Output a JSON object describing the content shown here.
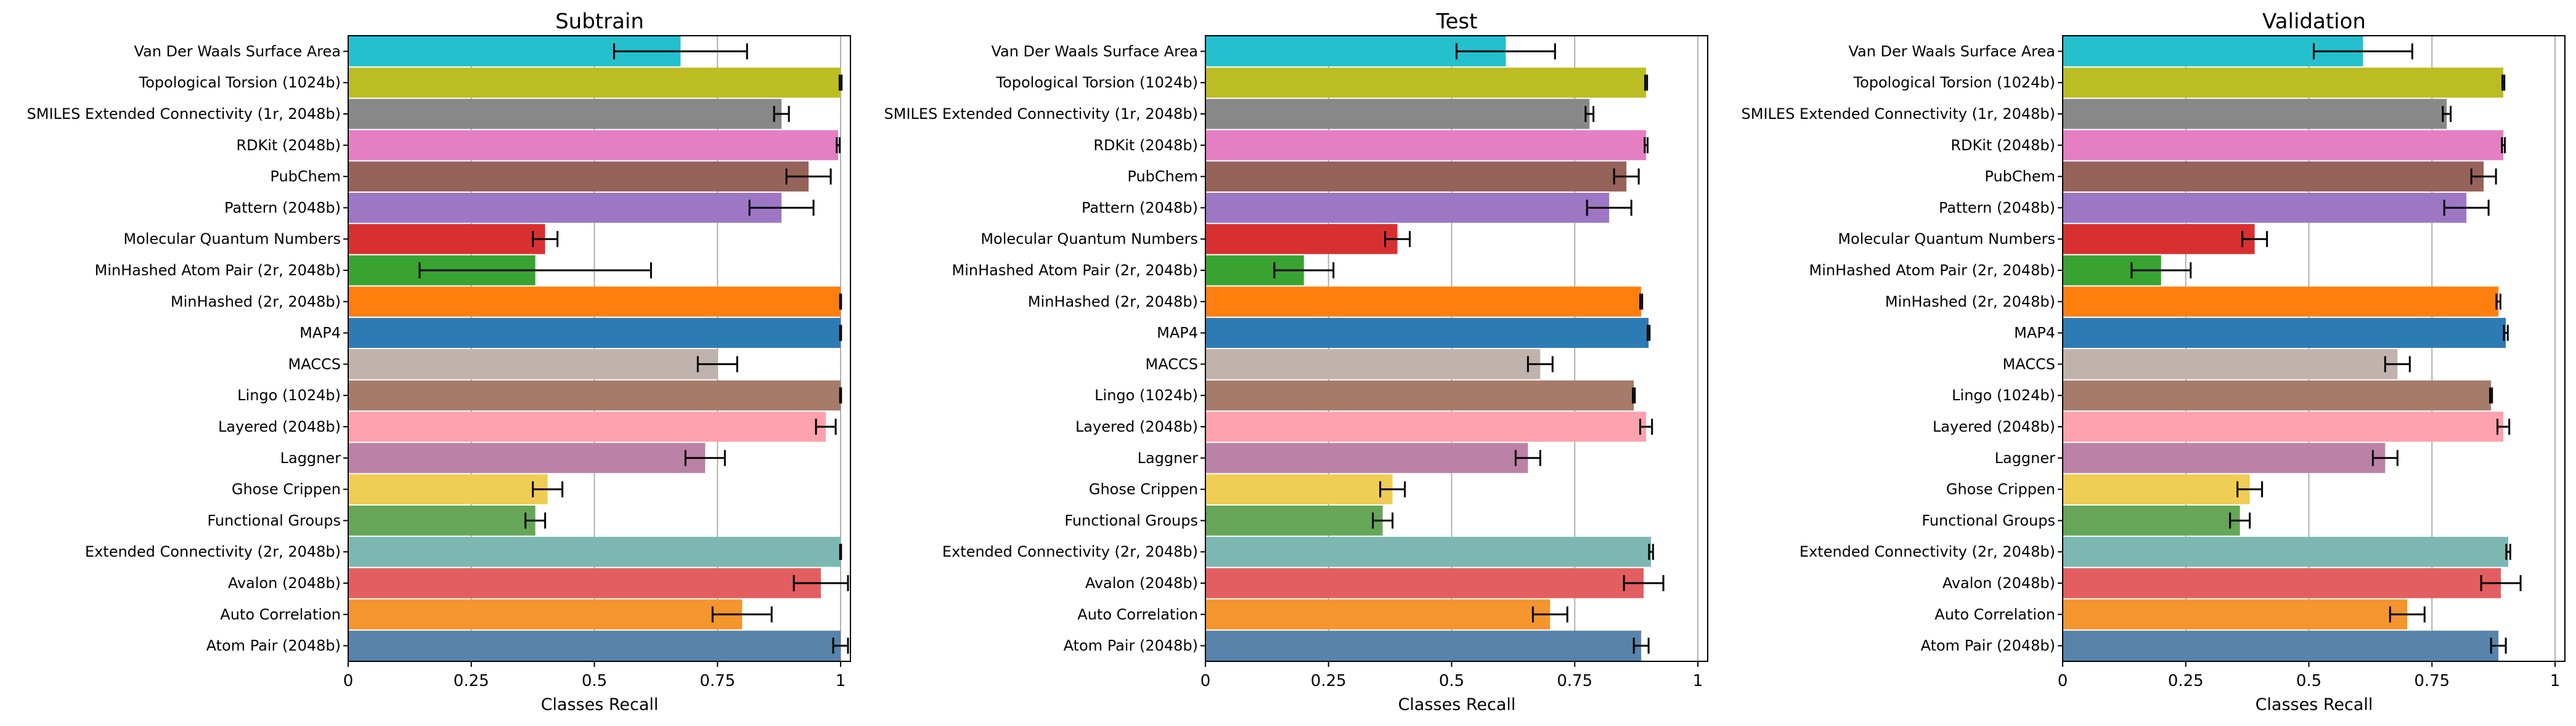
{
  "chart_data": [
    {
      "type": "bar",
      "orientation": "horizontal",
      "title": "Subtrain",
      "xlabel": "Classes Recall",
      "ylabel": "",
      "xlim": [
        0,
        1.02
      ],
      "xticks": [
        0,
        0.25,
        0.5,
        0.75,
        1
      ],
      "xtick_labels": [
        "0",
        "0.25",
        "0.5",
        "0.75",
        "1"
      ],
      "grid": "vertical",
      "categories": [
        "Van Der Waals Surface Area",
        "Topological Torsion (1024b)",
        "SMILES Extended Connectivity (1r, 2048b)",
        "RDKit (2048b)",
        "PubChem",
        "Pattern (2048b)",
        "Molecular Quantum Numbers",
        "MinHashed Atom Pair (2r, 2048b)",
        "MinHashed (2r, 2048b)",
        "MAP4",
        "MACCS",
        "Lingo (1024b)",
        "Layered (2048b)",
        "Laggner",
        "Ghose Crippen",
        "Functional Groups",
        "Extended Connectivity (2r, 2048b)",
        "Avalon (2048b)",
        "Auto Correlation",
        "Atom Pair (2048b)"
      ],
      "values": [
        0.675,
        1.0,
        0.88,
        0.995,
        0.935,
        0.88,
        0.4,
        0.38,
        1.0,
        1.0,
        0.75,
        1.0,
        0.97,
        0.725,
        0.405,
        0.38,
        1.0,
        0.96,
        0.8,
        1.0
      ],
      "errors": [
        0.135,
        0.002,
        0.015,
        0.003,
        0.045,
        0.065,
        0.025,
        0.235,
        0.001,
        0.001,
        0.04,
        0.001,
        0.02,
        0.04,
        0.03,
        0.02,
        0.001,
        0.055,
        0.06,
        0.015
      ],
      "colors": [
        "#24c0ce",
        "#bcbd22",
        "#888888",
        "#e57fc3",
        "#96635a",
        "#9d77c4",
        "#d83030",
        "#39a331",
        "#fe7f0e",
        "#2c7bb5",
        "#c0b3ae",
        "#a67b6a",
        "#fea2ad",
        "#bc81a6",
        "#efcd54",
        "#66a659",
        "#7cb8b1",
        "#e35e60",
        "#f4952e",
        "#5883ab"
      ]
    },
    {
      "type": "bar",
      "orientation": "horizontal",
      "title": "Test",
      "xlabel": "Classes Recall",
      "ylabel": "",
      "xlim": [
        0,
        1.02
      ],
      "xticks": [
        0,
        0.25,
        0.5,
        0.75,
        1
      ],
      "xtick_labels": [
        "0",
        "0.25",
        "0.5",
        "0.75",
        "1"
      ],
      "grid": "vertical",
      "categories": [
        "Van Der Waals Surface Area",
        "Topological Torsion (1024b)",
        "SMILES Extended Connectivity (1r, 2048b)",
        "RDKit (2048b)",
        "PubChem",
        "Pattern (2048b)",
        "Molecular Quantum Numbers",
        "MinHashed Atom Pair (2r, 2048b)",
        "MinHashed (2r, 2048b)",
        "MAP4",
        "MACCS",
        "Lingo (1024b)",
        "Layered (2048b)",
        "Laggner",
        "Ghose Crippen",
        "Functional Groups",
        "Extended Connectivity (2r, 2048b)",
        "Avalon (2048b)",
        "Auto Correlation",
        "Atom Pair (2048b)"
      ],
      "values": [
        0.61,
        0.895,
        0.78,
        0.895,
        0.855,
        0.82,
        0.39,
        0.2,
        0.885,
        0.9,
        0.68,
        0.87,
        0.895,
        0.655,
        0.38,
        0.36,
        0.905,
        0.89,
        0.7,
        0.885
      ],
      "errors": [
        0.1,
        0.002,
        0.008,
        0.003,
        0.025,
        0.045,
        0.025,
        0.06,
        0.002,
        0.002,
        0.025,
        0.002,
        0.012,
        0.025,
        0.025,
        0.02,
        0.004,
        0.04,
        0.035,
        0.015
      ],
      "colors": [
        "#24c0ce",
        "#bcbd22",
        "#888888",
        "#e57fc3",
        "#96635a",
        "#9d77c4",
        "#d83030",
        "#39a331",
        "#fe7f0e",
        "#2c7bb5",
        "#c0b3ae",
        "#a67b6a",
        "#fea2ad",
        "#bc81a6",
        "#efcd54",
        "#66a659",
        "#7cb8b1",
        "#e35e60",
        "#f4952e",
        "#5883ab"
      ]
    },
    {
      "type": "bar",
      "orientation": "horizontal",
      "title": "Validation",
      "xlabel": "Classes Recall",
      "ylabel": "",
      "xlim": [
        0,
        1.02
      ],
      "xticks": [
        0,
        0.25,
        0.5,
        0.75,
        1
      ],
      "xtick_labels": [
        "0",
        "0.25",
        "0.5",
        "0.75",
        "1"
      ],
      "grid": "vertical",
      "categories": [
        "Van Der Waals Surface Area",
        "Topological Torsion (1024b)",
        "SMILES Extended Connectivity (1r, 2048b)",
        "RDKit (2048b)",
        "PubChem",
        "Pattern (2048b)",
        "Molecular Quantum Numbers",
        "MinHashed Atom Pair (2r, 2048b)",
        "MinHashed (2r, 2048b)",
        "MAP4",
        "MACCS",
        "Lingo (1024b)",
        "Layered (2048b)",
        "Laggner",
        "Ghose Crippen",
        "Functional Groups",
        "Extended Connectivity (2r, 2048b)",
        "Avalon (2048b)",
        "Auto Correlation",
        "Atom Pair (2048b)"
      ],
      "values": [
        0.61,
        0.895,
        0.78,
        0.895,
        0.855,
        0.82,
        0.39,
        0.2,
        0.885,
        0.9,
        0.68,
        0.87,
        0.895,
        0.655,
        0.38,
        0.36,
        0.905,
        0.89,
        0.7,
        0.885
      ],
      "errors": [
        0.1,
        0.002,
        0.008,
        0.003,
        0.025,
        0.045,
        0.025,
        0.06,
        0.004,
        0.004,
        0.025,
        0.002,
        0.012,
        0.025,
        0.025,
        0.02,
        0.004,
        0.04,
        0.035,
        0.015
      ],
      "colors": [
        "#24c0ce",
        "#bcbd22",
        "#888888",
        "#e57fc3",
        "#96635a",
        "#9d77c4",
        "#d83030",
        "#39a331",
        "#fe7f0e",
        "#2c7bb5",
        "#c0b3ae",
        "#a67b6a",
        "#fea2ad",
        "#bc81a6",
        "#efcd54",
        "#66a659",
        "#7cb8b1",
        "#e35e60",
        "#f4952e",
        "#5883ab"
      ]
    }
  ]
}
